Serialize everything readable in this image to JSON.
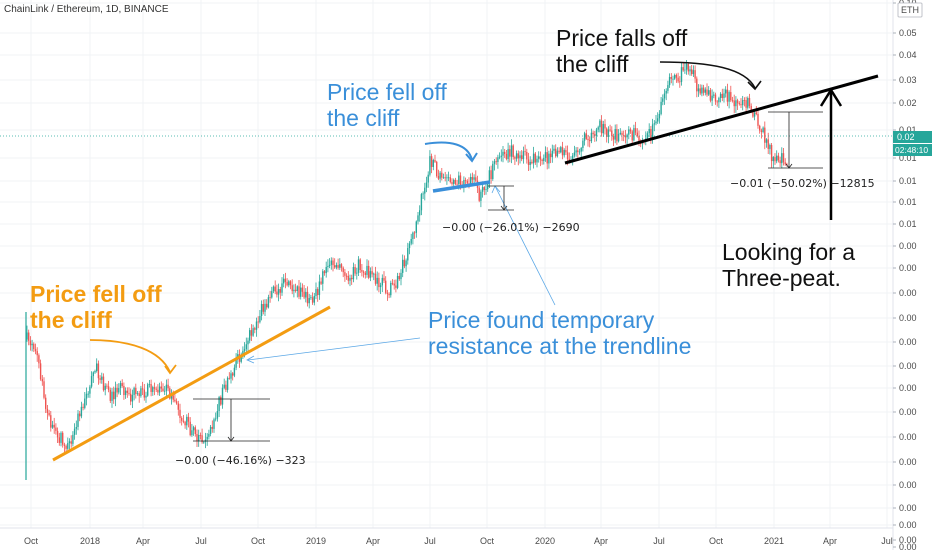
{
  "chart_data": {
    "type": "candlestick",
    "title": "ChainLink / Ethereum, 1D, BINANCE",
    "unit_badge": "ETH",
    "y_tick_labels": [
      "0.10",
      "0.05",
      "0.04",
      "0.03",
      "0.02",
      "0.01",
      "0.01",
      "0.01",
      "0.01",
      "0.01",
      "0.00",
      "0.00",
      "0.00",
      "0.00",
      "0.00",
      "0.00",
      "0.00",
      "0.00",
      "0.00",
      "0.00",
      "0.00",
      "0.00",
      "0.00",
      "0.00",
      "0.00"
    ],
    "x_tick_labels": [
      "Oct",
      "2018",
      "Apr",
      "Jul",
      "Oct",
      "2019",
      "Apr",
      "Jul",
      "Oct",
      "2020",
      "Apr",
      "Jul",
      "Oct",
      "2021",
      "Apr",
      "Jul"
    ],
    "price_label": "0.02",
    "countdown_label": "02:48:10",
    "measurements": [
      {
        "text": "−0.00 (−46.16%) −323"
      },
      {
        "text": "−0.00 (−26.01%) −2690"
      },
      {
        "text": "−0.01 (−50.02%) −12815"
      }
    ],
    "annotations": [
      {
        "lines": [
          "Price fell off",
          "the cliff"
        ],
        "color": "#f39c12"
      },
      {
        "lines": [
          "Price fell off",
          "the cliff"
        ],
        "color": "#3a8fd9"
      },
      {
        "lines": [
          "Price falls off",
          "the cliff"
        ],
        "color": "#111111"
      },
      {
        "lines": [
          "Price found temporary",
          "resistance at the trendline"
        ],
        "color": "#3a8fd9"
      },
      {
        "lines": [
          "Looking for a",
          "Three-peat."
        ],
        "color": "#111111"
      }
    ],
    "colors": {
      "up": "#26a69a",
      "down": "#ef5350",
      "trend_orange": "#f39c12",
      "trend_blue": "#3a8fd9",
      "trend_black": "#000000",
      "price_badge": "#26a69a"
    }
  }
}
